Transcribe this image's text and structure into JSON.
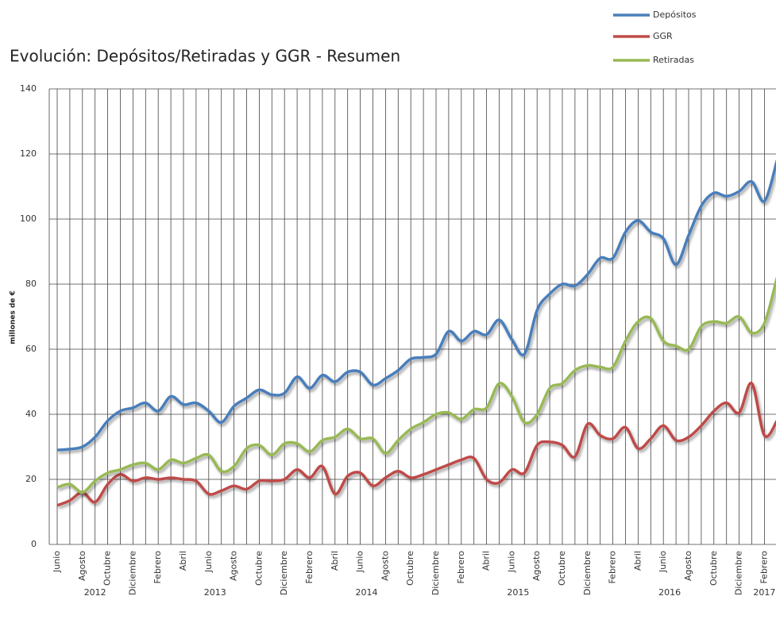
{
  "chart_data": {
    "type": "line",
    "title": "Evolución: Depósitos/Retiradas y GGR - Resumen",
    "y_label": "millones de €",
    "categories": [
      "Junio",
      null,
      "Agosto",
      null,
      "Octubre",
      null,
      "Diciembre",
      null,
      "Febrero",
      null,
      "Abril",
      null,
      "Junio",
      null,
      "Agosto",
      null,
      "Octubre",
      null,
      "Diciembre",
      null,
      "Febrero",
      null,
      "Abril",
      null,
      "Junio",
      null,
      "Agosto",
      null,
      "Octubre",
      null,
      "Diciembre",
      null,
      "Febrero",
      null,
      "Abril",
      null,
      "Junio",
      null,
      "Agosto",
      null,
      "Octubre",
      null,
      "Diciembre",
      null,
      "Febrero",
      null,
      "Abril",
      null,
      "Junio",
      null,
      "Agosto",
      null,
      "Octubre",
      null,
      "Diciembre",
      null,
      "Febrero",
      null
    ],
    "years": [
      {
        "label": "2012",
        "months": 7
      },
      {
        "label": "2013",
        "months": 12
      },
      {
        "label": "2014",
        "months": 12
      },
      {
        "label": "2015",
        "months": 12
      },
      {
        "label": "2016",
        "months": 12
      },
      {
        "label": "2017",
        "months": 3
      }
    ],
    "series": [
      {
        "name": "Depósitos",
        "color": "#4a7ebb",
        "values": [
          29,
          29.3,
          30,
          33,
          38,
          41,
          42,
          43.5,
          41,
          45.5,
          43,
          43.5,
          41,
          37.5,
          42.5,
          45,
          47.5,
          46,
          46.5,
          51.5,
          48,
          52,
          50,
          53,
          53,
          49,
          51,
          53.5,
          57,
          57.5,
          58.5,
          65.5,
          62.5,
          65.5,
          64.5,
          69,
          63,
          58.5,
          72,
          77,
          80,
          79.5,
          83,
          88,
          88,
          96,
          99.5,
          96,
          94,
          86,
          95,
          104,
          108,
          107,
          108.5,
          111.5,
          105.5,
          118
        ]
      },
      {
        "name": "GGR",
        "color": "#be4b48",
        "values": [
          12,
          13.5,
          16,
          13,
          18.5,
          21.5,
          19.5,
          20.5,
          20,
          20.5,
          20,
          19.5,
          15.5,
          16.5,
          18,
          17,
          19.5,
          19.5,
          20,
          23,
          20.5,
          24,
          15.5,
          21,
          22,
          18,
          20.5,
          22.5,
          20.5,
          21.5,
          23,
          24.5,
          26,
          26.5,
          20,
          19,
          23,
          22,
          30.5,
          31.5,
          30.5,
          27,
          37,
          33.5,
          32.5,
          36,
          29.5,
          32.5,
          36.5,
          32,
          33,
          36.5,
          41,
          43.5,
          40.5,
          49.5,
          33.5,
          38
        ]
      },
      {
        "name": "Retiradas",
        "color": "#98b954",
        "values": [
          17.5,
          18.5,
          16,
          19.5,
          22,
          23,
          24.5,
          25,
          23,
          26,
          25,
          26.5,
          27.5,
          22.5,
          24,
          29.5,
          30.5,
          27.5,
          31,
          31,
          28.5,
          32,
          33,
          35.5,
          32.5,
          32.5,
          28,
          32,
          35.5,
          37.5,
          40,
          40.5,
          38.5,
          41.5,
          42,
          49.5,
          45.5,
          37.5,
          40,
          48,
          49.5,
          53.5,
          55,
          54.5,
          54.5,
          62.5,
          68.5,
          69.5,
          62.5,
          61,
          60,
          67,
          68.5,
          68,
          70,
          65,
          68,
          82
        ]
      }
    ],
    "ylim": [
      0,
      140
    ],
    "yticks": [
      0,
      20,
      40,
      60,
      80,
      100,
      120,
      140
    ],
    "grid": true
  }
}
